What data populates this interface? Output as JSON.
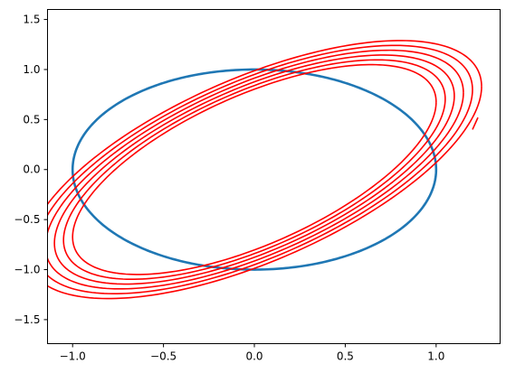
{
  "chart_data": {
    "type": "line",
    "title": "",
    "xlabel": "",
    "ylabel": "",
    "xlim": [
      -1.138,
      1.352
    ],
    "ylim": [
      -1.74,
      1.6
    ],
    "x_ticks": [
      -1.0,
      -0.5,
      0.0,
      0.5,
      1.0
    ],
    "x_tick_labels": [
      "−1.0",
      "−0.5",
      "0.0",
      "0.5",
      "1.0"
    ],
    "y_ticks": [
      -1.5,
      -1.0,
      -0.5,
      0.0,
      0.5,
      1.0,
      1.5
    ],
    "y_tick_labels": [
      "−1.5",
      "−1.0",
      "−0.5",
      "0.0",
      "0.5",
      "1.0",
      "1.5"
    ],
    "grid": false,
    "legend": "none",
    "series": [
      {
        "kind": "circle",
        "center": [
          0,
          0
        ],
        "radius": 1.0,
        "color": "#1f77b4"
      },
      {
        "kind": "tilted-ellipse-family",
        "color": "#ff0000",
        "samples_per_curve": 240,
        "curves": [
          {
            "a": 1.0,
            "phase_deg": 40
          },
          {
            "a": 1.05,
            "phase_deg": 40
          },
          {
            "a": 1.1,
            "phase_deg": 40
          },
          {
            "a": 1.15,
            "phase_deg": 40
          },
          {
            "a": 1.2,
            "phase_deg": 40
          },
          {
            "a": 1.25,
            "phase_deg": 40
          }
        ],
        "equation": "x = a*cos(t), y = sqrt(a^2 + 0.1)*sin(t + phase)",
        "open_endpoint": [
          1.2,
          0.4
        ]
      }
    ]
  }
}
